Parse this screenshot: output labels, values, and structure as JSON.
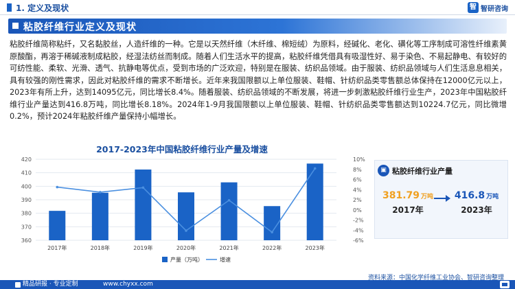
{
  "section": {
    "title": "1. 定义及现状"
  },
  "brand": {
    "logo_text": "智",
    "name": "智研咨询"
  },
  "banner": {
    "title": "粘胶纤维行业定义及现状"
  },
  "paragraph": "粘胶纤维简称粘纤，又名黏胶丝，人造纤维的一种。它是以天然纤维（木纤维、棉短绒）为原料，经碱化、老化、磺化等工序制成可溶性纤维素黄原酸酯，再溶于稀碱液制成粘胶，经湿法纺丝而制成。随着人们生活水平的提高，粘胶纤维凭借具有吸湿性好、易于染色、不易起静电、有较好的可纺性能、柔软、光滑、透气、抗静电等优点，受到市场的广泛欢迎，特别是在服装、纺织品领域。由于服装、纺织品领域与人们生活息息相关，具有较强的刚性需求，因此对粘胶纤维的需求不断增长。近年来我国限额以上单位服装、鞋帽、针纺织品类零售额总体保持在12000亿元以上，2023年有所上升，达到14095亿元，同比增长8.4%。随着服装、纺织品领域的不断发展，将进一步刺激粘胶纤维行业生产，2023年中国粘胶纤维行业产量达到416.8万吨，同比增长8.18%。2024年1-9月我国限额以上单位服装、鞋帽、针纺织品类零售额达到10224.7亿元，同比微增0.2%，预计2024年粘胶纤维产量保持小幅增长。",
  "chart_data": {
    "type": "bar",
    "title": "2017-2023年中国粘胶纤维行业产量及增速",
    "categories": [
      "2017年",
      "2018年",
      "2019年",
      "2020年",
      "2021年",
      "2022年",
      "2023年"
    ],
    "series": [
      {
        "name": "产量（万吨）",
        "type": "bar",
        "axis": "left",
        "values": [
          381.79,
          395.2,
          412.4,
          395.5,
          402.9,
          385.3,
          416.8
        ]
      },
      {
        "name": "增速",
        "type": "line",
        "axis": "right",
        "values": [
          4.5,
          3.5,
          4.4,
          -4.1,
          1.9,
          -4.4,
          8.18
        ]
      }
    ],
    "y_left": {
      "ylim": [
        360,
        420
      ],
      "ticks": [
        "360",
        "370",
        "380",
        "390",
        "400",
        "410",
        "420"
      ]
    },
    "y_right": {
      "ylim": [
        -6,
        10
      ],
      "ticks": [
        "-6%",
        "-4%",
        "-2%",
        "0%",
        "2%",
        "4%",
        "6%",
        "8%",
        "10%"
      ]
    },
    "grid": true,
    "legend_position": "bottom",
    "colors": {
      "bar": "#1a63c6",
      "line": "#4a8fe0"
    }
  },
  "card": {
    "title": "粘胶纤维行业产量",
    "from": {
      "value": "381.79",
      "unit": "万吨",
      "year": "2017年",
      "color": "#f0a020"
    },
    "to": {
      "value": "416.8",
      "unit": "万吨",
      "year": "2023年",
      "color": "#1a56b8"
    }
  },
  "source": "资料来源：中国化学纤维工业协会、智研咨询整理",
  "footer": {
    "left_label": "精品研报 · 专业定制",
    "mid_label": "www.chyxx.com"
  }
}
